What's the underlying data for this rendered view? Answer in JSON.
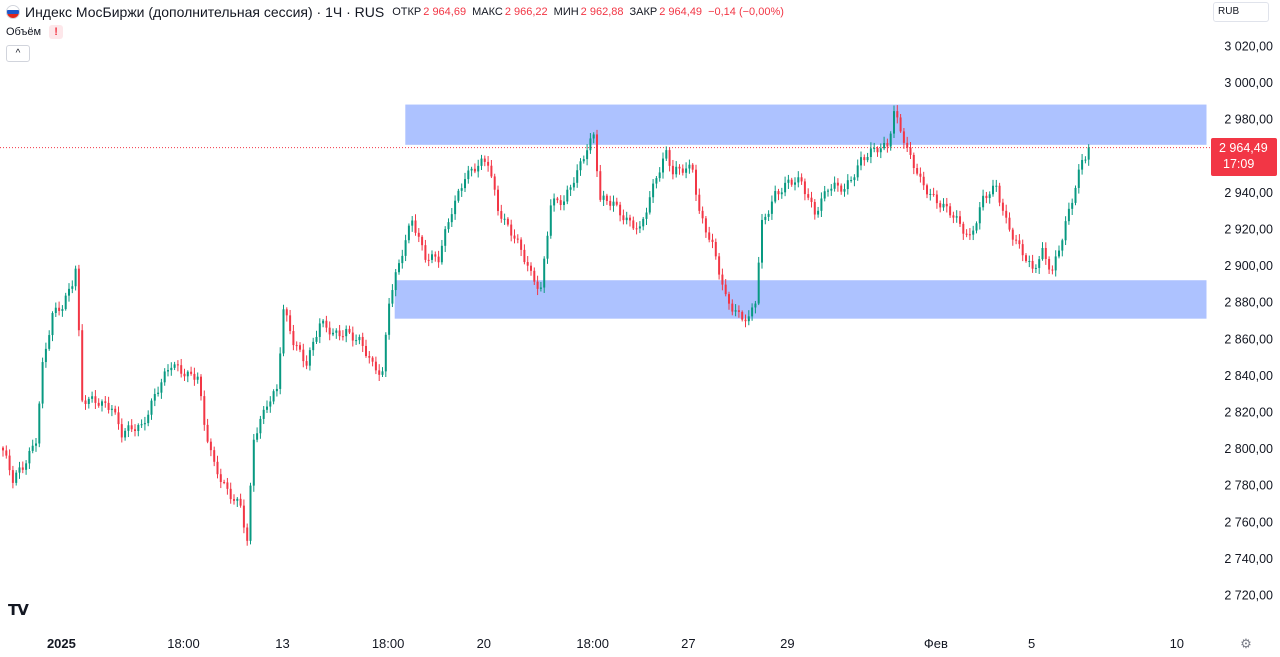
{
  "header": {
    "title": "Индекс МосБиржи (дополнительная сессия) · 1Ч · RUS",
    "open_label": "ОТКР",
    "open": "2 964,69",
    "high_label": "МАКС",
    "high": "2 966,22",
    "low_label": "МИН",
    "low": "2 962,88",
    "close_label": "ЗАКР",
    "close": "2 964,49",
    "change": "−0,14 (−0,00%)"
  },
  "volume_label": "Объём",
  "volume_warning": "!",
  "collapse_icon": "^",
  "currency": "RUB",
  "last_price": {
    "price": "2 964,49",
    "time": "17:09"
  },
  "tv_logo": "TV",
  "settings_icon": "⚙",
  "colors": {
    "up": "#089981",
    "down": "#f23645",
    "zone": "#adc2ff",
    "price_line": "#f23645"
  },
  "chart_data": {
    "type": "candlestick",
    "title": "Индекс МосБиржи (дополнительная сессия)",
    "interval": "1Ч",
    "ylim": [
      2705,
      3040
    ],
    "y_ticks": [
      3020,
      3000,
      2980,
      2960,
      2940,
      2920,
      2900,
      2880,
      2860,
      2840,
      2820,
      2800,
      2780,
      2760,
      2740,
      2720
    ],
    "y_tick_labels": [
      "3 020,00",
      "3 000,00",
      "2 980,00",
      "2 960,00",
      "2 940,00",
      "2 920,00",
      "2 900,00",
      "2 880,00",
      "2 860,00",
      "2 840,00",
      "2 820,00",
      "2 800,00",
      "2 780,00",
      "2 760,00",
      "2 740,00",
      "2 720,00"
    ],
    "x_tick_labels": [
      "2025",
      "18:00",
      "13",
      "18:00",
      "20",
      "18:00",
      "27",
      "29",
      "Фев",
      "5",
      "10"
    ],
    "x_tick_index": [
      18,
      55,
      85,
      117,
      146,
      179,
      208,
      238,
      283,
      312,
      356
    ],
    "zones": [
      {
        "start_index": 121,
        "end_index": 365,
        "price_low": 2966,
        "price_high": 2988
      },
      {
        "start_index": 119,
        "end_index": 365,
        "price_low": 2871,
        "price_high": 2892
      }
    ],
    "last_price": 2964.49,
    "anchors": [
      [
        0,
        2799
      ],
      [
        3,
        2782
      ],
      [
        6,
        2790
      ],
      [
        10,
        2806
      ],
      [
        12,
        2845
      ],
      [
        15,
        2872
      ],
      [
        18,
        2878
      ],
      [
        21,
        2892
      ],
      [
        22,
        2900
      ],
      [
        24,
        2826
      ],
      [
        28,
        2825
      ],
      [
        33,
        2824
      ],
      [
        36,
        2808
      ],
      [
        42,
        2812
      ],
      [
        46,
        2830
      ],
      [
        51,
        2845
      ],
      [
        55,
        2842
      ],
      [
        59,
        2840
      ],
      [
        61,
        2812
      ],
      [
        64,
        2790
      ],
      [
        68,
        2778
      ],
      [
        72,
        2768
      ],
      [
        74,
        2748
      ],
      [
        76,
        2805
      ],
      [
        80,
        2826
      ],
      [
        83,
        2832
      ],
      [
        85,
        2875
      ],
      [
        88,
        2858
      ],
      [
        92,
        2848
      ],
      [
        96,
        2868
      ],
      [
        100,
        2862
      ],
      [
        104,
        2865
      ],
      [
        108,
        2858
      ],
      [
        112,
        2845
      ],
      [
        115,
        2842
      ],
      [
        117,
        2882
      ],
      [
        120,
        2900
      ],
      [
        124,
        2925
      ],
      [
        128,
        2906
      ],
      [
        132,
        2903
      ],
      [
        136,
        2930
      ],
      [
        140,
        2950
      ],
      [
        145,
        2955
      ],
      [
        147,
        2956
      ],
      [
        150,
        2932
      ],
      [
        155,
        2915
      ],
      [
        160,
        2895
      ],
      [
        163,
        2888
      ],
      [
        166,
        2934
      ],
      [
        170,
        2934
      ],
      [
        173,
        2948
      ],
      [
        177,
        2965
      ],
      [
        179,
        2970
      ],
      [
        181,
        2935
      ],
      [
        185,
        2935
      ],
      [
        189,
        2925
      ],
      [
        193,
        2918
      ],
      [
        198,
        2950
      ],
      [
        201,
        2962
      ],
      [
        203,
        2950
      ],
      [
        209,
        2954
      ],
      [
        211,
        2930
      ],
      [
        215,
        2910
      ],
      [
        219,
        2882
      ],
      [
        223,
        2874
      ],
      [
        226,
        2870
      ],
      [
        228,
        2880
      ],
      [
        230,
        2922
      ],
      [
        234,
        2940
      ],
      [
        238,
        2945
      ],
      [
        242,
        2945
      ],
      [
        246,
        2930
      ],
      [
        250,
        2942
      ],
      [
        255,
        2942
      ],
      [
        260,
        2958
      ],
      [
        264,
        2962
      ],
      [
        268,
        2966
      ],
      [
        270,
        2985
      ],
      [
        272,
        2975
      ],
      [
        274,
        2962
      ],
      [
        278,
        2946
      ],
      [
        282,
        2938
      ],
      [
        285,
        2932
      ],
      [
        289,
        2924
      ],
      [
        293,
        2916
      ],
      [
        297,
        2936
      ],
      [
        301,
        2942
      ],
      [
        304,
        2925
      ],
      [
        308,
        2910
      ],
      [
        312,
        2896
      ],
      [
        315,
        2908
      ],
      [
        318,
        2898
      ],
      [
        321,
        2915
      ],
      [
        324,
        2935
      ],
      [
        327,
        2958
      ],
      [
        329,
        2964.49
      ]
    ]
  }
}
